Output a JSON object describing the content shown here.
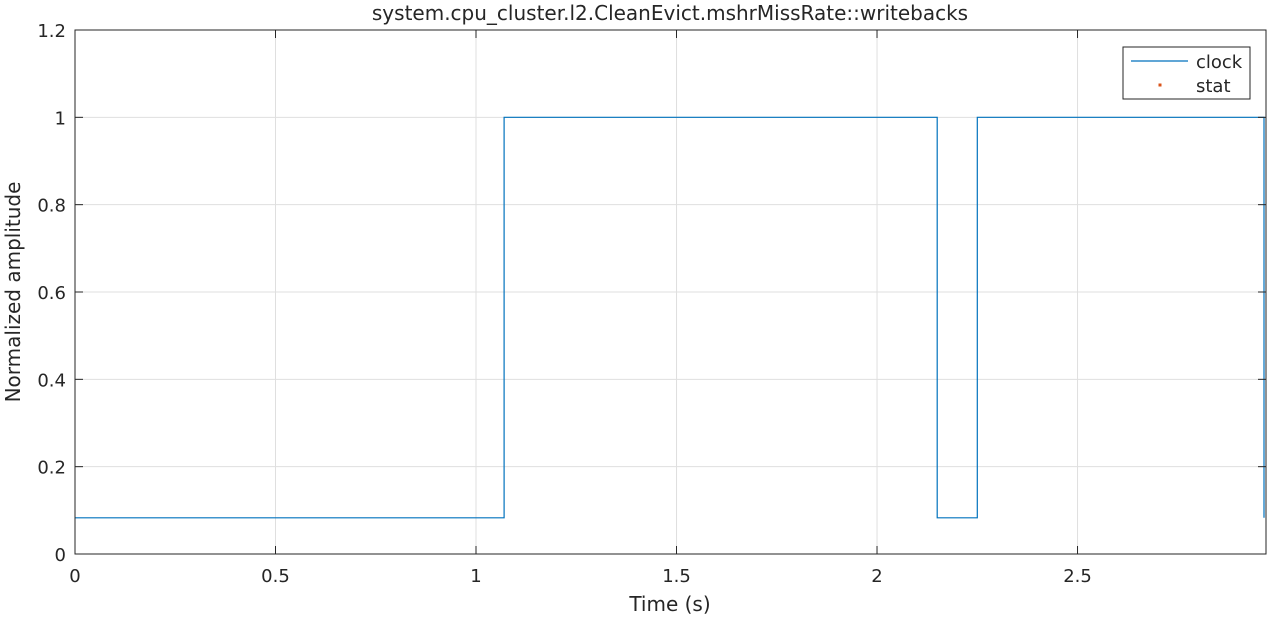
{
  "chart_data": {
    "type": "line",
    "title": "system.cpu_cluster.l2.CleanEvict.mshrMissRate::writebacks",
    "xlabel": "Time (s)",
    "ylabel": "Normalized amplitude",
    "xlim": [
      0,
      2.97
    ],
    "ylim": [
      0,
      1.2
    ],
    "x_ticks": [
      0,
      0.5,
      1,
      1.5,
      2,
      2.5
    ],
    "x_tick_labels": [
      "0",
      "0.5",
      "1",
      "1.5",
      "2",
      "2.5"
    ],
    "y_ticks": [
      0,
      0.2,
      0.4,
      0.6,
      0.8,
      1,
      1.2
    ],
    "y_tick_labels": [
      "0",
      "0.2",
      "0.4",
      "0.6",
      "0.8",
      "1",
      "1.2"
    ],
    "grid": true,
    "legend_position": "top-right",
    "series": [
      {
        "name": "clock",
        "style": "stairs",
        "color": "#0072BD",
        "x": [
          0,
          1.07,
          1.07,
          2.15,
          2.15,
          2.25,
          2.25,
          2.965,
          2.965
        ],
        "y": [
          0.083,
          0.083,
          1,
          1,
          0.083,
          0.083,
          1,
          1,
          0.083
        ]
      },
      {
        "name": "stat",
        "style": "markers",
        "color": "#D95319",
        "x": [],
        "y": []
      }
    ]
  }
}
